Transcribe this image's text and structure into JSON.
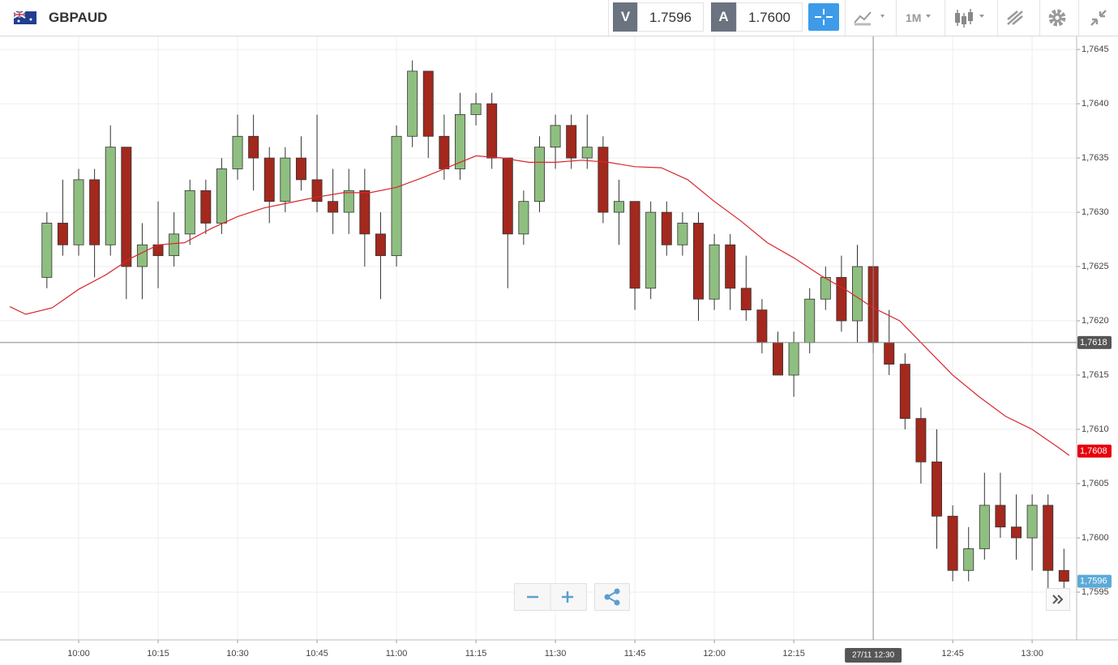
{
  "header": {
    "symbol": "GBPAUD",
    "bid_label": "V",
    "bid": "1.7596",
    "ask_label": "A",
    "ask": "1.7600",
    "interval": "1M"
  },
  "chart_data": {
    "type": "candlestick",
    "x": [
      594,
      597,
      600,
      603,
      606,
      609,
      612,
      615,
      618,
      621,
      624,
      627,
      630,
      633,
      636,
      639,
      642,
      645,
      648,
      651,
      654,
      657,
      660,
      663,
      666,
      669,
      672,
      675,
      678,
      681,
      684,
      687,
      690,
      693,
      696,
      699,
      702,
      705,
      708,
      711,
      714,
      717,
      720,
      723,
      726,
      729,
      732,
      735,
      738,
      741,
      744,
      747,
      750,
      753,
      756,
      759,
      762,
      765,
      768,
      771,
      774,
      777,
      780,
      783,
      786
    ],
    "open": [
      1.7624,
      1.7629,
      1.7627,
      1.7633,
      1.7627,
      1.7636,
      1.7625,
      1.7627,
      1.7626,
      1.7628,
      1.7632,
      1.7629,
      1.7634,
      1.7637,
      1.7635,
      1.7631,
      1.7635,
      1.7633,
      1.7631,
      1.763,
      1.7632,
      1.7628,
      1.7626,
      1.7637,
      1.7643,
      1.7637,
      1.7634,
      1.7639,
      1.764,
      1.7635,
      1.7628,
      1.7631,
      1.7636,
      1.7638,
      1.7635,
      1.7636,
      1.763,
      1.7631,
      1.7623,
      1.763,
      1.7627,
      1.7629,
      1.7622,
      1.7627,
      1.7623,
      1.7621,
      1.7618,
      1.7615,
      1.7618,
      1.7622,
      1.7624,
      1.762,
      1.7625,
      1.7618,
      1.7616,
      1.7611,
      1.7607,
      1.7602,
      1.7597,
      1.7599,
      1.7603,
      1.7601,
      1.76,
      1.7603,
      1.7597
    ],
    "high": [
      1.763,
      1.7633,
      1.7634,
      1.7634,
      1.7638,
      1.7636,
      1.7629,
      1.7631,
      1.763,
      1.7633,
      1.7633,
      1.7635,
      1.7639,
      1.7639,
      1.7636,
      1.7636,
      1.7637,
      1.7639,
      1.7634,
      1.7634,
      1.7634,
      1.763,
      1.7638,
      1.7644,
      1.7643,
      1.7639,
      1.7641,
      1.7641,
      1.7641,
      1.7635,
      1.7632,
      1.7637,
      1.7639,
      1.7639,
      1.7639,
      1.7637,
      1.7633,
      1.7631,
      1.7631,
      1.7631,
      1.763,
      1.763,
      1.7628,
      1.7628,
      1.7626,
      1.7622,
      1.7619,
      1.7619,
      1.7623,
      1.7625,
      1.7626,
      1.7627,
      1.7625,
      1.7621,
      1.7617,
      1.7612,
      1.761,
      1.7603,
      1.7601,
      1.7606,
      1.7606,
      1.7604,
      1.7604,
      1.7604,
      1.7599
    ],
    "low": [
      1.7623,
      1.7626,
      1.7626,
      1.7624,
      1.7626,
      1.7622,
      1.7622,
      1.7623,
      1.7625,
      1.7627,
      1.7628,
      1.7628,
      1.7633,
      1.7632,
      1.7629,
      1.763,
      1.7632,
      1.763,
      1.7628,
      1.7628,
      1.7625,
      1.7622,
      1.7625,
      1.7636,
      1.7635,
      1.7633,
      1.7633,
      1.7638,
      1.7634,
      1.7623,
      1.7627,
      1.763,
      1.7634,
      1.7634,
      1.7634,
      1.7629,
      1.7627,
      1.7621,
      1.7622,
      1.7626,
      1.7626,
      1.762,
      1.7621,
      1.7621,
      1.762,
      1.7617,
      1.7615,
      1.7613,
      1.7617,
      1.7621,
      1.7619,
      1.7618,
      1.7617,
      1.7615,
      1.761,
      1.7605,
      1.7599,
      1.7596,
      1.7596,
      1.7598,
      1.76,
      1.7598,
      1.7597,
      1.7595,
      1.7594
    ],
    "close": [
      1.7629,
      1.7627,
      1.7633,
      1.7627,
      1.7636,
      1.7625,
      1.7627,
      1.7626,
      1.7628,
      1.7632,
      1.7629,
      1.7634,
      1.7637,
      1.7635,
      1.7631,
      1.7635,
      1.7633,
      1.7631,
      1.763,
      1.7632,
      1.7628,
      1.7626,
      1.7637,
      1.7643,
      1.7637,
      1.7634,
      1.7639,
      1.764,
      1.7635,
      1.7628,
      1.7631,
      1.7636,
      1.7638,
      1.7635,
      1.7636,
      1.763,
      1.7631,
      1.7623,
      1.763,
      1.7627,
      1.7629,
      1.7622,
      1.7627,
      1.7623,
      1.7621,
      1.7618,
      1.7615,
      1.7618,
      1.7622,
      1.7624,
      1.762,
      1.7625,
      1.7618,
      1.7616,
      1.7611,
      1.7607,
      1.7602,
      1.7597,
      1.7599,
      1.7603,
      1.7601,
      1.76,
      1.7603,
      1.7597,
      1.7596
    ],
    "up_color": "#8fbf80",
    "down_color": "#a3281d",
    "moving_average": {
      "color": "#d9262b",
      "x": [
        587,
        590,
        595,
        600,
        605,
        610,
        615,
        620,
        625,
        630,
        635,
        640,
        645,
        650,
        655,
        660,
        665,
        670,
        675,
        680,
        685,
        690,
        695,
        700,
        705,
        710,
        715,
        720,
        725,
        730,
        735,
        740,
        745,
        750,
        755,
        760,
        765,
        770,
        775,
        780,
        785,
        787
      ],
      "values": [
        1.76213,
        1.76206,
        1.76212,
        1.76229,
        1.76242,
        1.76258,
        1.7627,
        1.76272,
        1.76285,
        1.76296,
        1.76304,
        1.76309,
        1.76314,
        1.76318,
        1.76318,
        1.76323,
        1.76332,
        1.76342,
        1.76352,
        1.7635,
        1.76346,
        1.76346,
        1.76348,
        1.76346,
        1.76342,
        1.76341,
        1.7633,
        1.7631,
        1.76292,
        1.76272,
        1.76258,
        1.76242,
        1.76228,
        1.76212,
        1.762,
        1.76175,
        1.7615,
        1.7613,
        1.76112,
        1.761,
        1.76083,
        1.76076
      ]
    },
    "xlim": [
      585.15,
      788.4
    ],
    "ylim": [
      1.75906,
      1.76462
    ],
    "xticks": [
      {
        "value": 600,
        "label": "10:00"
      },
      {
        "value": 615,
        "label": "10:15"
      },
      {
        "value": 630,
        "label": "10:30"
      },
      {
        "value": 645,
        "label": "10:45"
      },
      {
        "value": 660,
        "label": "11:00"
      },
      {
        "value": 675,
        "label": "11:15"
      },
      {
        "value": 690,
        "label": "11:30"
      },
      {
        "value": 705,
        "label": "11:45"
      },
      {
        "value": 720,
        "label": "12:00"
      },
      {
        "value": 735,
        "label": "12:15"
      },
      {
        "value": 765,
        "label": "12:45"
      },
      {
        "value": 780,
        "label": "13:00"
      }
    ],
    "yticks": [
      {
        "value": 1.7595,
        "label": "1,7595"
      },
      {
        "value": 1.76,
        "label": "1,7600"
      },
      {
        "value": 1.7605,
        "label": "1,7605"
      },
      {
        "value": 1.761,
        "label": "1,7610"
      },
      {
        "value": 1.7615,
        "label": "1,7615"
      },
      {
        "value": 1.762,
        "label": "1,7620"
      },
      {
        "value": 1.7625,
        "label": "1,7625"
      },
      {
        "value": 1.763,
        "label": "1,7630"
      },
      {
        "value": 1.7635,
        "label": "1,7635"
      },
      {
        "value": 1.764,
        "label": "1,7640"
      },
      {
        "value": 1.7645,
        "label": "1,7645"
      }
    ],
    "grid": true,
    "crosshair": {
      "x": {
        "value": 750,
        "label": "27/11 12:30"
      },
      "y": {
        "value": 1.7618,
        "label": "1,7618"
      }
    },
    "price_markers": [
      {
        "value": 1.7608,
        "label": "1,7608",
        "color": "#e8000b"
      },
      {
        "value": 1.7596,
        "label": "1,7596",
        "color": "#5aaad8"
      }
    ]
  }
}
